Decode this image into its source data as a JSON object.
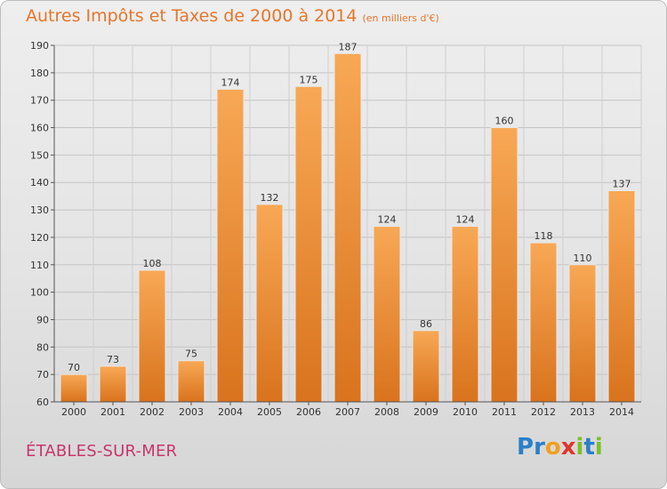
{
  "header": {
    "title": "Autres Impôts et Taxes de 2000 à 2014",
    "unit": "(en milliers d'€)"
  },
  "footer": {
    "commune": "ÉTABLES-SUR-MER",
    "logo_text": "Proxiti"
  },
  "colors": {
    "title": "#e4762a",
    "commune": "#c8356d",
    "bar_light": "#f8a855",
    "bar_dark": "#d9731d"
  },
  "chart_data": {
    "type": "bar",
    "title": "Autres Impôts et Taxes de 2000 à 2014",
    "subtitle": "(en milliers d'€)",
    "categories": [
      "2000",
      "2001",
      "2002",
      "2003",
      "2004",
      "2005",
      "2006",
      "2007",
      "2008",
      "2009",
      "2010",
      "2011",
      "2012",
      "2013",
      "2014"
    ],
    "values": [
      70,
      73,
      108,
      75,
      174,
      132,
      175,
      187,
      124,
      86,
      124,
      160,
      118,
      110,
      137
    ],
    "ylim": [
      60,
      190
    ],
    "yticks": [
      60,
      70,
      80,
      90,
      100,
      110,
      120,
      130,
      140,
      150,
      160,
      170,
      180,
      190
    ],
    "grid": true,
    "legend": "none"
  }
}
